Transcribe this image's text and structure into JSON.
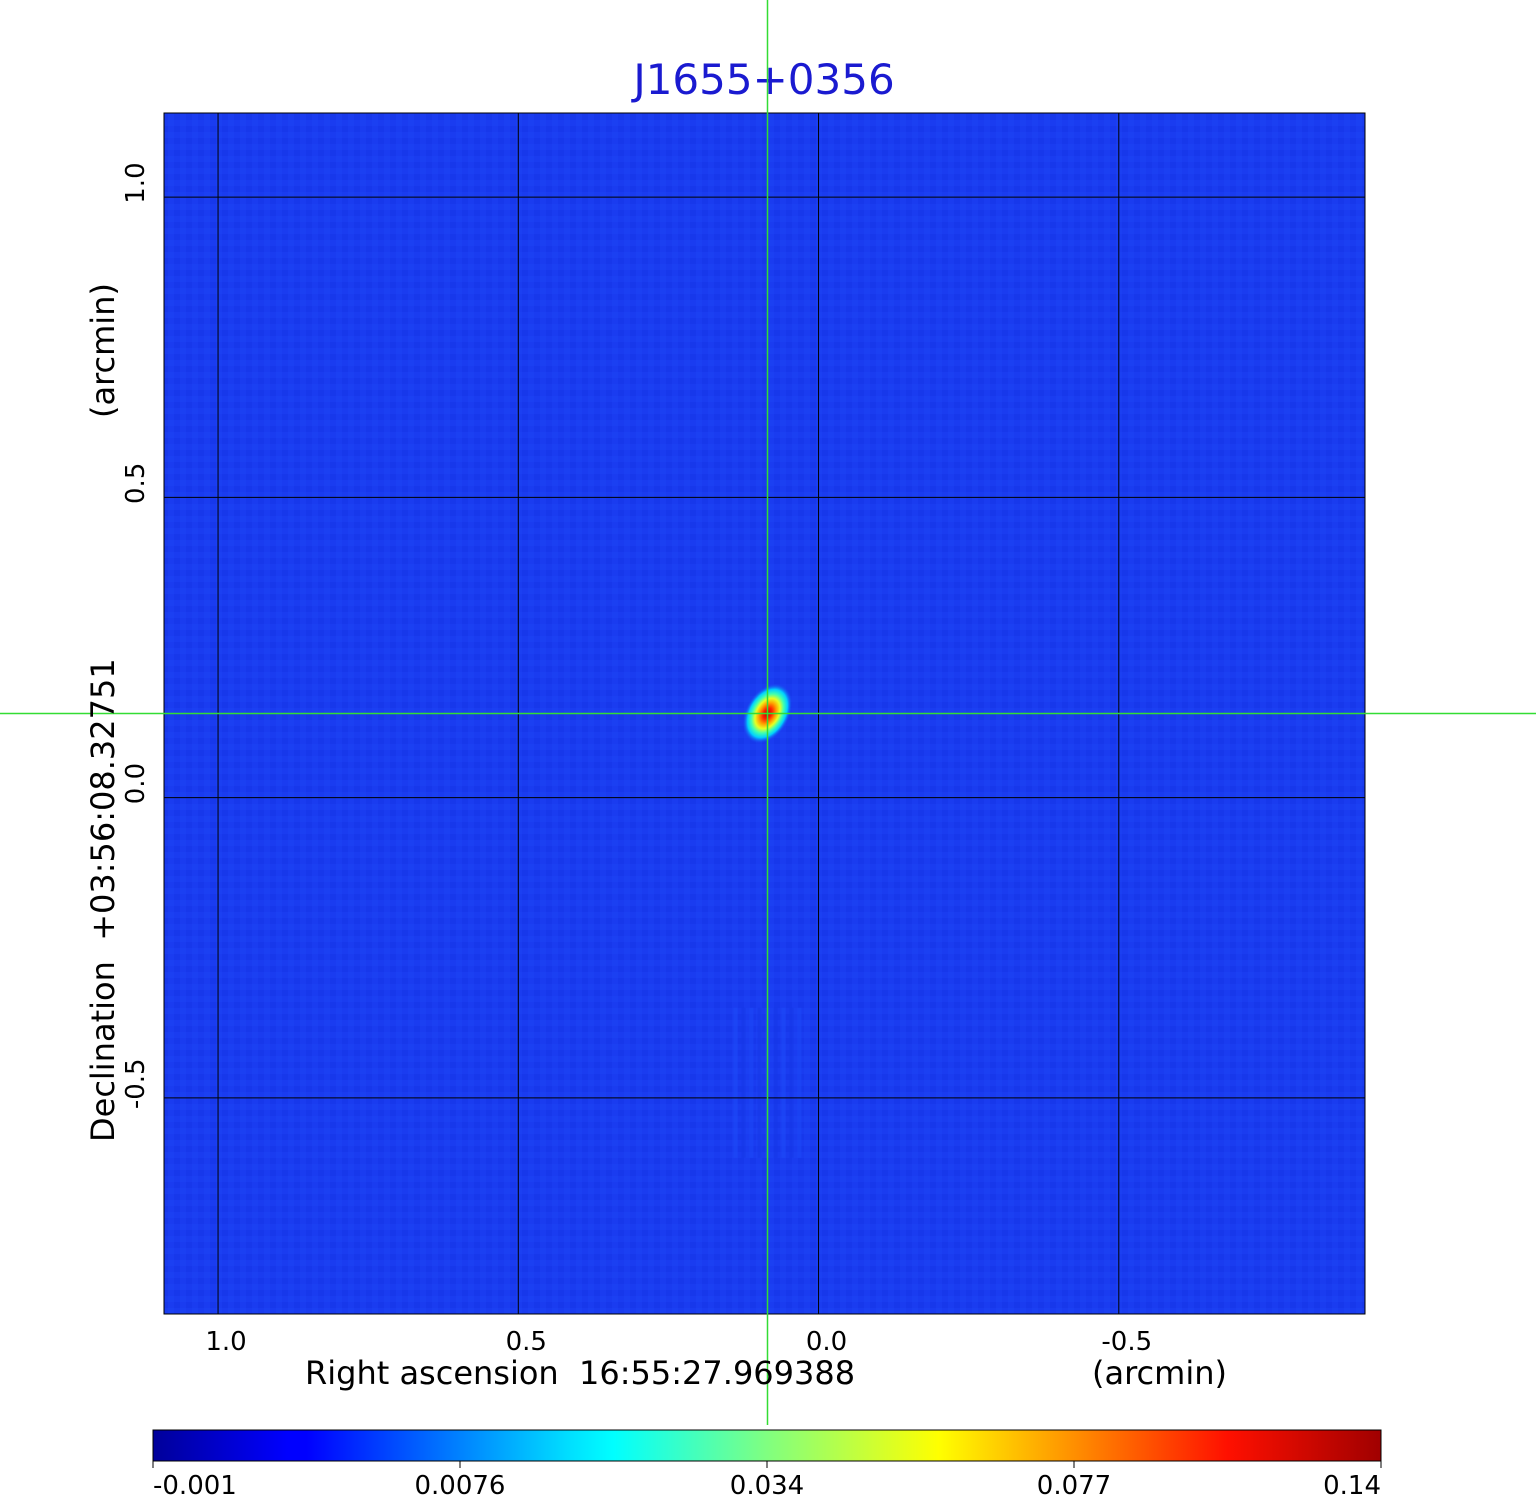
{
  "chart_data": {
    "type": "heatmap",
    "title": "J1655+0356",
    "title_color": "#1a1ad0",
    "xlabel": "Right ascension  16:55:27.969388",
    "xlabel_unit": "(arcmin)",
    "ylabel": "Declination  +03:56:08.32751",
    "ylabel_unit": "(arcmin)",
    "x_ticks": [
      "1.0",
      "0.5",
      "0.0",
      "-0.5"
    ],
    "x_tick_values": [
      1.0,
      0.5,
      0.0,
      -0.5
    ],
    "y_ticks": [
      "1.0",
      "0.5",
      "0.0",
      "-0.5"
    ],
    "y_tick_values": [
      1.0,
      0.5,
      0.0,
      -0.5
    ],
    "xlim": [
      1.09,
      -0.91
    ],
    "ylim": [
      -0.86,
      1.14
    ],
    "grid": true,
    "grid_color": "#000000",
    "crosshair": {
      "x": 0.085,
      "y": 0.14,
      "color": "#33dd33"
    },
    "source": {
      "x": 0.085,
      "y": 0.14,
      "peak": 0.14,
      "sigma_major": 0.04,
      "sigma_minor": 0.027,
      "angle_deg": 30
    },
    "colorbar": {
      "colormap": "jet",
      "ticks": [
        "-0.001",
        "0.0076",
        "0.034",
        "0.077",
        "0.14"
      ],
      "range": [
        -0.001,
        0.14
      ]
    },
    "background_color": "#1a3cf0"
  }
}
